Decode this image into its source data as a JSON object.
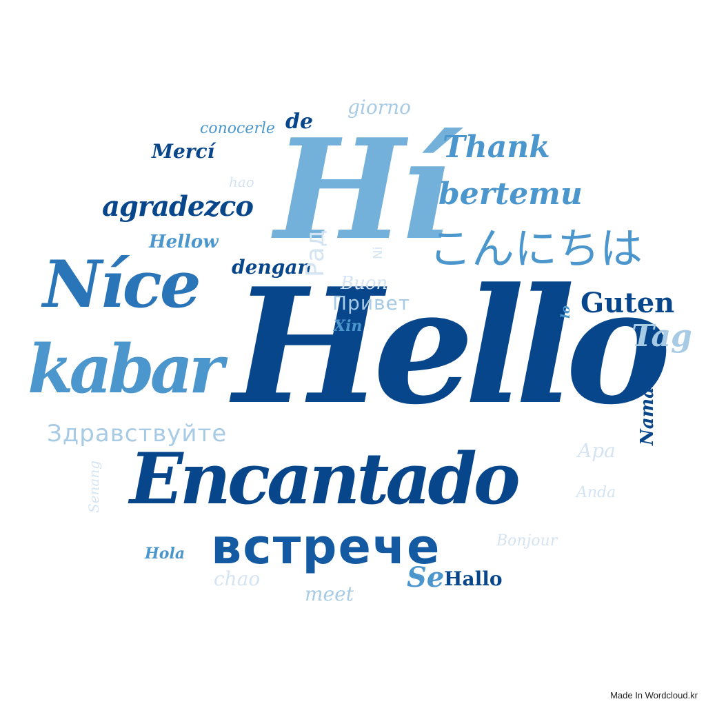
{
  "credit": "Made In Wordcloud.kr",
  "colors": {
    "darkest": "#08468b",
    "dark": "#135aa2",
    "mid": "#2a74b8",
    "medium": "#4b96cc",
    "light": "#74b1da",
    "pale": "#a7cbe5",
    "faint": "#d5e4f2"
  },
  "words": [
    {
      "text": "Hello",
      "color": "darkest"
    },
    {
      "text": "Hí",
      "color": "light"
    },
    {
      "text": "Encantado",
      "color": "darkest"
    },
    {
      "text": "Níce",
      "color": "mid"
    },
    {
      "text": "kabar",
      "color": "medium"
    },
    {
      "text": "встрече",
      "color": "dark"
    },
    {
      "text": "こんにちは",
      "color": "medium"
    },
    {
      "text": "Thank",
      "color": "medium"
    },
    {
      "text": "bertemu",
      "color": "medium"
    },
    {
      "text": "agradezco",
      "color": "darkest"
    },
    {
      "text": "Guten",
      "color": "darkest"
    },
    {
      "text": "Tag",
      "color": "pale"
    },
    {
      "text": "Здравствуйте",
      "color": "pale"
    },
    {
      "text": "Привет",
      "color": "pale"
    },
    {
      "text": "dengan",
      "color": "darkest"
    },
    {
      "text": "Hellow",
      "color": "medium"
    },
    {
      "text": "Mercí",
      "color": "darkest"
    },
    {
      "text": "de",
      "color": "darkest"
    },
    {
      "text": "conocerle",
      "color": "medium"
    },
    {
      "text": "giorno",
      "color": "pale"
    },
    {
      "text": "hao",
      "color": "faint"
    },
    {
      "text": "Рад",
      "color": "faint"
    },
    {
      "text": "Ni",
      "color": "faint"
    },
    {
      "text": "Buon",
      "color": "faint"
    },
    {
      "text": "Xin",
      "color": "medium"
    },
    {
      "text": "lo",
      "color": "medium"
    },
    {
      "text": "Namaste",
      "color": "darkest"
    },
    {
      "text": "Apa",
      "color": "faint"
    },
    {
      "text": "Anda",
      "color": "faint"
    },
    {
      "text": "Bonjour",
      "color": "faint"
    },
    {
      "text": "Senang",
      "color": "faint"
    },
    {
      "text": "Hola",
      "color": "medium"
    },
    {
      "text": "chao",
      "color": "faint"
    },
    {
      "text": "Se",
      "color": "medium"
    },
    {
      "text": "Hallo",
      "color": "darkest"
    },
    {
      "text": "meet",
      "color": "pale"
    }
  ]
}
